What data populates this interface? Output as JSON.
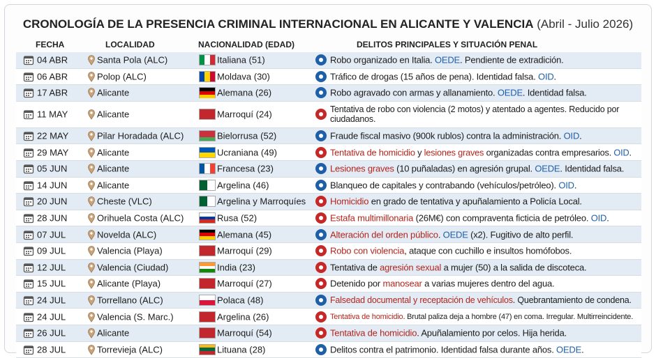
{
  "title": {
    "main": "CRONOLOGÍA DE LA PRESENCIA CRIMINAL INTERNACIONAL EN ALICANTE Y VALENCIA",
    "period": "(Abril - Julio 2026)"
  },
  "header": {
    "date": "FECHA",
    "place": "LOCALIDAD",
    "nationality": "NACIONALIDAD (EDAD)",
    "crime": "DELITOS PRINCIPALES Y SITUACIÓN PENAL"
  },
  "rows": [
    {
      "date": "04 ABR",
      "place": "Santa Pola (ALC)",
      "nationality": "Italiana (51)",
      "flag": {
        "dir": "v",
        "colors": [
          "#009246",
          "#ffffff",
          "#ce2b37"
        ]
      },
      "icon_color": "#1f5fa8",
      "crime": [
        {
          "text": "Robo organizado en Italia. "
        },
        {
          "text": "OEDE",
          "color": "#1f5fa8"
        },
        {
          "text": ". Pendiente de extradición."
        }
      ]
    },
    {
      "date": "06 ABR",
      "place": "Polop (ALC)",
      "nationality": "Moldava (30)",
      "flag": {
        "dir": "v",
        "colors": [
          "#0046ae",
          "#ffd200",
          "#cc092f"
        ]
      },
      "icon_color": "#1f5fa8",
      "crime": [
        {
          "text": "Tráfico de drogas (15 años de pena). Identidad falsa. "
        },
        {
          "text": "OID",
          "color": "#1f5fa8"
        },
        {
          "text": "."
        }
      ]
    },
    {
      "date": "17 ABR",
      "place": "Alicante",
      "nationality": "Alemana (26)",
      "flag": {
        "dir": "h",
        "colors": [
          "#000000",
          "#dd0000",
          "#ffce00"
        ]
      },
      "icon_color": "#1f5fa8",
      "crime": [
        {
          "text": "Robo agravado con armas y allanamiento. "
        },
        {
          "text": "OEDE",
          "color": "#1f5fa8"
        },
        {
          "text": ". Identidad falsa."
        }
      ]
    },
    {
      "date": "11 MAY",
      "place": "Alicante",
      "nationality": "Marroquí (24)",
      "flag": {
        "dir": "h",
        "colors": [
          "#c1272d"
        ]
      },
      "icon_color": "#c62828",
      "crime": [
        {
          "text": "Tentativa de robo con violencia (2 motos) y atentado a agentes. Reducido por ciudadanos."
        }
      ]
    },
    {
      "date": "22 MAY",
      "place": "Pilar Horadada (ALC)",
      "nationality": "Bielorrusa (52)",
      "flag": {
        "dir": "h",
        "colors": [
          "#c8313e",
          "#c8313e",
          "#4aa657"
        ]
      },
      "icon_color": "#1f5fa8",
      "crime": [
        {
          "text": "Fraude fiscal masivo (900k rublos) contra la administración. "
        },
        {
          "text": "OID",
          "color": "#1f5fa8"
        },
        {
          "text": "."
        }
      ]
    },
    {
      "date": "29 MAY",
      "place": "Alicante",
      "nationality": "Ucraniana (49)",
      "flag": {
        "dir": "h",
        "colors": [
          "#0057b7",
          "#ffd700"
        ]
      },
      "icon_color": "#c62828",
      "crime": [
        {
          "text": "Tentativa de homicidio",
          "color": "#b3261e"
        },
        {
          "text": " y "
        },
        {
          "text": "lesiones graves",
          "color": "#b3261e"
        },
        {
          "text": " organizadas contra empresarios. "
        },
        {
          "text": "OID",
          "color": "#1f5fa8"
        },
        {
          "text": "."
        }
      ]
    },
    {
      "date": "05 JUN",
      "place": "Alicante",
      "nationality": "Francesa (23)",
      "flag": {
        "dir": "v",
        "colors": [
          "#0055a4",
          "#ffffff",
          "#ef4135"
        ]
      },
      "icon_color": "#1f5fa8",
      "crime": [
        {
          "text": "Lesiones graves",
          "color": "#b3261e"
        },
        {
          "text": " (10 puñaladas) en agresión grupal. "
        },
        {
          "text": "OEDE",
          "color": "#1f5fa8"
        },
        {
          "text": ". Identidad falsa."
        }
      ]
    },
    {
      "date": "14 JUN",
      "place": "Alicante",
      "nationality": "Argelina (46)",
      "flag": {
        "dir": "v",
        "colors": [
          "#006233",
          "#ffffff"
        ]
      },
      "icon_color": "#1f5fa8",
      "crime": [
        {
          "text": "Blanqueo de capitales y contrabando (vehículos/petróleo). "
        },
        {
          "text": "OID",
          "color": "#1f5fa8"
        },
        {
          "text": "."
        }
      ]
    },
    {
      "date": "20 JUN",
      "place": "Cheste (VLC)",
      "nationality": "Argelina y Marroquíes",
      "flag": {
        "dir": "v",
        "colors": [
          "#006233",
          "#ffffff"
        ]
      },
      "icon_color": "#c62828",
      "crime": [
        {
          "text": "Homicidio",
          "color": "#b3261e"
        },
        {
          "text": " en grado de tentativa y apuñalamiento a Policía Local."
        }
      ]
    },
    {
      "date": "28 JUN",
      "place": "Orihuela Costa (ALC)",
      "nationality": "Rusa (52)",
      "flag": {
        "dir": "h",
        "colors": [
          "#ffffff",
          "#0039a6",
          "#d52b1e"
        ]
      },
      "icon_color": "#c62828",
      "crime": [
        {
          "text": "Estafa multimillonaria",
          "color": "#b3261e"
        },
        {
          "text": " (26M€) con compraventa ficticia de petróleo. "
        },
        {
          "text": "OID",
          "color": "#1f5fa8"
        },
        {
          "text": "."
        }
      ]
    },
    {
      "date": "07 JUL",
      "place": "Novelda (ALC)",
      "nationality": "Alemana (45)",
      "flag": {
        "dir": "h",
        "colors": [
          "#000000",
          "#dd0000",
          "#ffce00"
        ]
      },
      "icon_color": "#1f5fa8",
      "crime": [
        {
          "text": "Alteración del orden público",
          "color": "#b3261e"
        },
        {
          "text": ". "
        },
        {
          "text": "OEDE",
          "color": "#1f5fa8"
        },
        {
          "text": " (x2). Fugitivo de alto perfil."
        }
      ]
    },
    {
      "date": "09 JUL",
      "place": "Valencia (Playa)",
      "nationality": "Marroquí (29)",
      "flag": {
        "dir": "h",
        "colors": [
          "#c1272d"
        ]
      },
      "icon_color": "#c62828",
      "crime": [
        {
          "text": "Robo con violencia",
          "color": "#b3261e"
        },
        {
          "text": ", ataque con cuchillo e insultos homófobos."
        }
      ]
    },
    {
      "date": "12 JUL",
      "place": "Valencia (Ciudad)",
      "nationality": "India (23)",
      "flag": {
        "dir": "h",
        "colors": [
          "#ff9933",
          "#ffffff",
          "#138808"
        ]
      },
      "icon_color": "#c62828",
      "crime": [
        {
          "text": "Tentativa de "
        },
        {
          "text": "agresión sexual",
          "color": "#b3261e"
        },
        {
          "text": " a mujer (50) a la salida de discoteca."
        }
      ]
    },
    {
      "date": "15 JUL",
      "place": "Alicante (Playa)",
      "nationality": "Marroquí (27)",
      "flag": {
        "dir": "h",
        "colors": [
          "#c1272d"
        ]
      },
      "icon_color": "#c62828",
      "crime": [
        {
          "text": "Detenido por "
        },
        {
          "text": "manosear",
          "color": "#b3261e"
        },
        {
          "text": " a varias mujeres dentro del agua."
        }
      ]
    },
    {
      "date": "24 JUL",
      "place": "Torrellano (ALC)",
      "nationality": "Polaca (48)",
      "flag": {
        "dir": "h",
        "colors": [
          "#ffffff",
          "#dc143c"
        ]
      },
      "icon_color": "#1f5fa8",
      "crime": [
        {
          "text": "Falsedad documental y receptación de vehículos",
          "color": "#b3261e"
        },
        {
          "text": ". Quebrantamiento de condena."
        }
      ]
    },
    {
      "date": "24 JUL",
      "place": "Valencia (S. Marc.)",
      "nationality": "Argelina (26)",
      "flag": {
        "dir": "h",
        "colors": [
          "#c1272d"
        ]
      },
      "icon_color": "#c62828",
      "crime": [
        {
          "text": "Tentativa de homicidio",
          "color": "#b3261e"
        },
        {
          "text": ". Brutal paliza deja a hombre (47) en coma. Irregular. Multirreincidente."
        }
      ]
    },
    {
      "date": "26 JUL",
      "place": "Alicante",
      "nationality": "Marroquí (54)",
      "flag": {
        "dir": "h",
        "colors": [
          "#c1272d"
        ]
      },
      "icon_color": "#c62828",
      "crime": [
        {
          "text": "Tentativa de homicidio",
          "color": "#b3261e"
        },
        {
          "text": ". Apuñalamiento por celos. Hija herida."
        }
      ]
    },
    {
      "date": "28 JUL",
      "place": "Torrevieja (ALC)",
      "nationality": "Lituana (28)",
      "flag": {
        "dir": "h",
        "colors": [
          "#fdb913",
          "#006a44",
          "#c1272d"
        ]
      },
      "icon_color": "#1f5fa8",
      "crime": [
        {
          "text": "Delitos contra el patrimonio. Identidad falsa durante años. "
        },
        {
          "text": "OEDE",
          "color": "#1f5fa8"
        },
        {
          "text": "."
        }
      ]
    }
  ]
}
